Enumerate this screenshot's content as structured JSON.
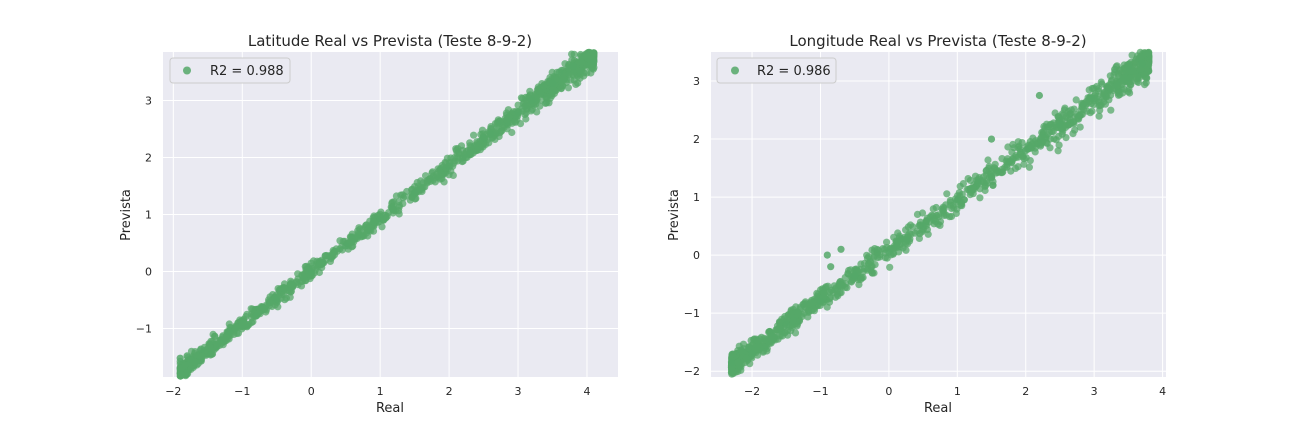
{
  "chart_data": [
    {
      "type": "scatter",
      "title": "Latitude Real vs Prevista (Teste 8-9-2)",
      "xlabel": "Real",
      "ylabel": "Prevista",
      "xlim": [
        -2.15,
        4.45
      ],
      "ylim": [
        -1.85,
        3.85
      ],
      "xticks": [
        -2,
        -1,
        0,
        1,
        2,
        3,
        4
      ],
      "yticks": [
        -1,
        0,
        1,
        2,
        3
      ],
      "grid": true,
      "legend_position": "top-left",
      "series": [
        {
          "name": "R2 = 0.988",
          "color": "#55a868",
          "trend": {
            "slope": 0.93,
            "intercept": 0.0,
            "spread": 0.07
          },
          "x_range": [
            -1.9,
            4.1
          ],
          "points": [
            [
              -1.9,
              -1.52
            ],
            [
              -1.8,
              -1.48
            ],
            [
              -1.6,
              -1.36
            ],
            [
              -1.2,
              -1.05
            ],
            [
              -0.8,
              -0.78
            ],
            [
              -0.5,
              -0.48
            ],
            [
              0.0,
              -0.02
            ],
            [
              0.5,
              0.45
            ],
            [
              1.0,
              0.93
            ],
            [
              1.5,
              1.38
            ],
            [
              2.0,
              1.85
            ],
            [
              2.5,
              2.35
            ],
            [
              3.0,
              2.8
            ],
            [
              3.5,
              3.3
            ],
            [
              3.6,
              3.5
            ],
            [
              3.8,
              3.6
            ],
            [
              4.1,
              3.68
            ],
            [
              3.4,
              2.95
            ],
            [
              3.2,
              3.0
            ],
            [
              2.6,
              2.4
            ]
          ]
        }
      ]
    },
    {
      "type": "scatter",
      "title": "Longitude Real vs Prevista (Teste 8-9-2)",
      "xlabel": "Real",
      "ylabel": "Prevista",
      "xlim": [
        -2.6,
        4.05
      ],
      "ylim": [
        -2.1,
        3.5
      ],
      "xticks": [
        -2,
        -1,
        0,
        1,
        2,
        3,
        4
      ],
      "yticks": [
        -2,
        -1,
        0,
        1,
        2,
        3
      ],
      "grid": true,
      "legend_position": "top-left",
      "series": [
        {
          "name": "R2 = 0.986",
          "color": "#55a868",
          "trend": {
            "slope": 0.86,
            "intercept": 0.08,
            "spread": 0.1
          },
          "x_range": [
            -2.3,
            3.8
          ],
          "points": [
            [
              -2.3,
              -1.85
            ],
            [
              -2.0,
              -1.7
            ],
            [
              -1.5,
              -1.2
            ],
            [
              -1.0,
              -0.8
            ],
            [
              -0.5,
              -0.35
            ],
            [
              0.0,
              0.05
            ],
            [
              0.5,
              0.5
            ],
            [
              1.0,
              0.95
            ],
            [
              1.5,
              1.35
            ],
            [
              2.0,
              1.8
            ],
            [
              2.5,
              2.25
            ],
            [
              3.0,
              2.7
            ],
            [
              3.3,
              3.2
            ],
            [
              3.5,
              3.25
            ],
            [
              3.7,
              3.3
            ],
            [
              -0.85,
              -0.2
            ],
            [
              -0.9,
              0.0
            ],
            [
              -0.7,
              0.1
            ],
            [
              1.5,
              2.0
            ],
            [
              2.2,
              2.75
            ],
            [
              1.3,
              1.25
            ]
          ]
        }
      ]
    }
  ]
}
